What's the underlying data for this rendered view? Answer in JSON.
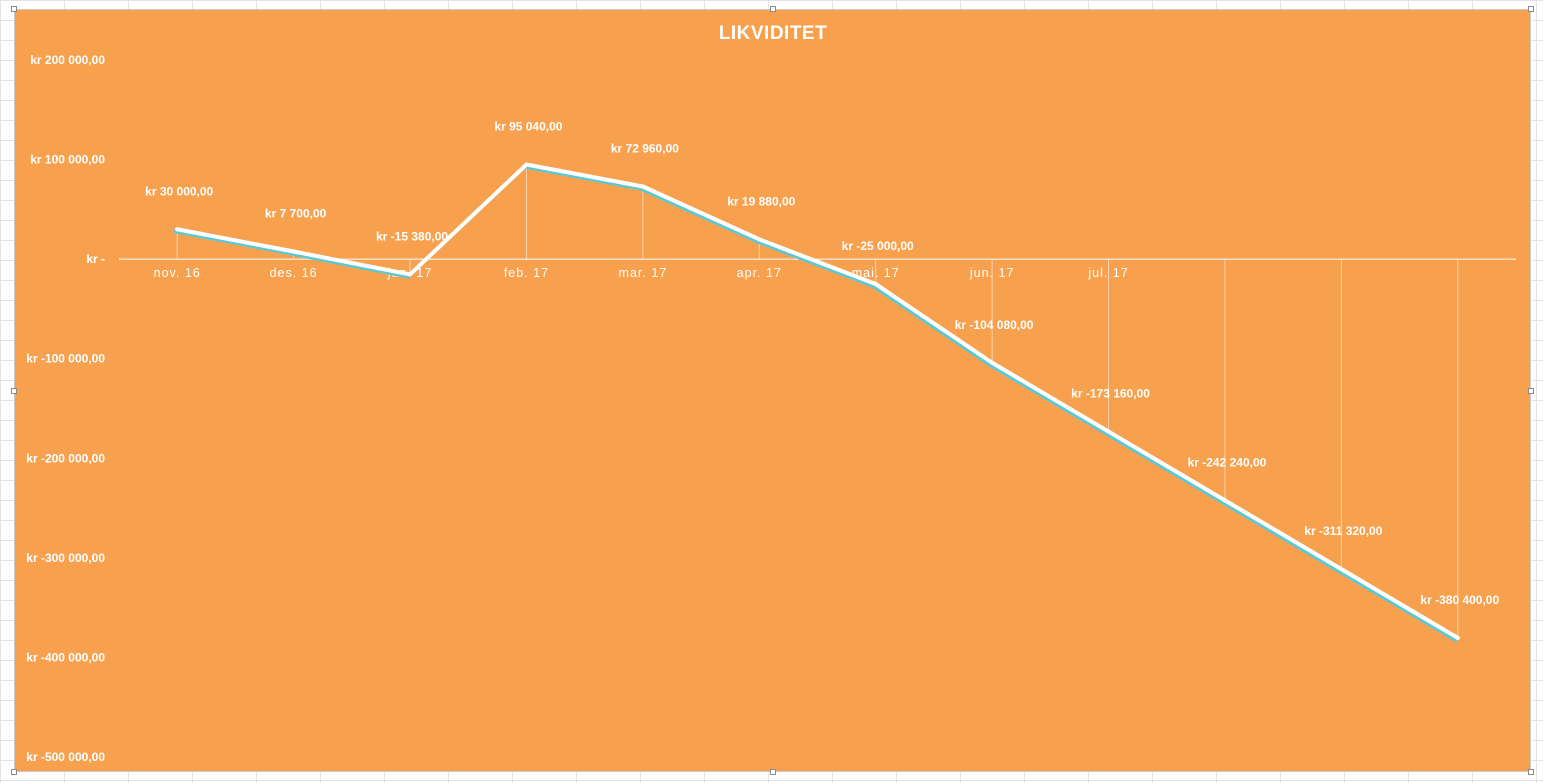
{
  "chart_data": {
    "type": "line",
    "title": "LIKVIDITET",
    "categories": [
      "nov. 16",
      "des. 16",
      "jan. 17",
      "feb. 17",
      "mar. 17",
      "apr. 17",
      "mai. 17",
      "jun. 17",
      "jul. 17",
      "",
      "",
      ""
    ],
    "series": [
      {
        "values": [
          30000,
          7700,
          -15380,
          95040,
          72960,
          19880,
          -25000,
          -104080,
          -173160,
          -242240,
          -311320,
          -380400
        ],
        "data_labels": [
          "kr 30 000,00",
          "kr 7 700,00",
          "kr -15 380,00",
          "kr 95 040,00",
          "kr 72 960,00",
          "kr 19 880,00",
          "kr -25 000,00",
          "kr -104 080,00",
          "kr -173 160,00",
          "kr -242 240,00",
          "kr -311 320,00",
          "kr -380 400,00"
        ]
      }
    ],
    "y_ticks": [
      {
        "value": 200000,
        "label": "kr 200 000,00"
      },
      {
        "value": 100000,
        "label": "kr 100 000,00"
      },
      {
        "value": 0,
        "label": "kr -"
      },
      {
        "value": -100000,
        "label": "kr -100 000,00"
      },
      {
        "value": -200000,
        "label": "kr -200 000,00"
      },
      {
        "value": -300000,
        "label": "kr -300 000,00"
      },
      {
        "value": -400000,
        "label": "kr -400 000,00"
      },
      {
        "value": -500000,
        "label": "kr -500 000,00"
      }
    ],
    "ylim": [
      -500000,
      200000
    ],
    "grid": false,
    "legend": "none",
    "colors": {
      "background": "#F7A14F",
      "line": "#ffffff",
      "line_shadow": "#5BC8D6",
      "text": "#ffffff"
    }
  }
}
